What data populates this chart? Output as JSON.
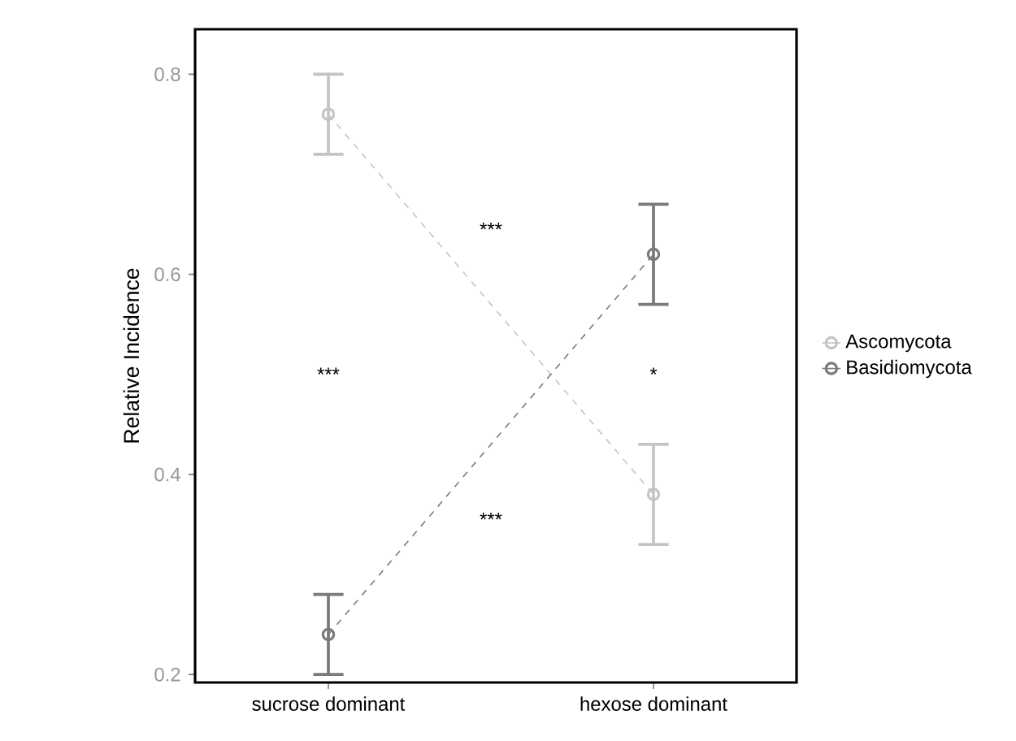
{
  "chart_data": {
    "type": "line",
    "ylabel": "Relative Incidence",
    "categories": [
      "sucrose dominant",
      "hexose dominant"
    ],
    "series": [
      {
        "name": "Ascomycota",
        "color": "#c4c4c4",
        "values": [
          0.76,
          0.38
        ],
        "errors": [
          0.04,
          0.05
        ]
      },
      {
        "name": "Basidiomycota",
        "color": "#7a7a7a",
        "values": [
          0.24,
          0.62
        ],
        "errors": [
          0.04,
          0.05
        ]
      }
    ],
    "ylim": [
      0.192,
      0.845
    ],
    "yticks": [
      0.2,
      0.4,
      0.6,
      0.8
    ],
    "marker": "circle",
    "line_style": "dashed",
    "legend": "right",
    "grid": false,
    "annotations": [
      "***",
      "*",
      "***",
      "***"
    ]
  }
}
